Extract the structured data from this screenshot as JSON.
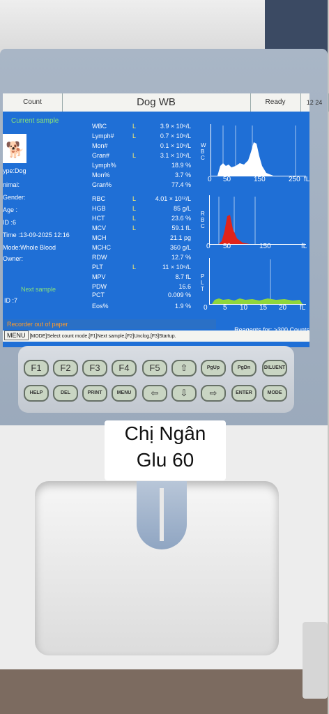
{
  "screen": {
    "mode": "Count",
    "title": "Dog  WB",
    "status": "Ready",
    "time": "12 24",
    "current_sample_label": "Current sample",
    "patient": {
      "type": "ype:Dog",
      "animal": "nimal:",
      "gender": "Gender:",
      "age": "Age  :",
      "id": "ID     :6",
      "time": "Time :13-09-2025 12:16",
      "mode": "Mode:Whole Blood",
      "owner": " Owner:"
    },
    "next_sample_label": "Next sample",
    "next_id": "ID    :7",
    "params": [
      {
        "name": "WBC",
        "flag": "L",
        "value": "3.9 × 10⁹/L"
      },
      {
        "name": "Lymph#",
        "flag": "L",
        "value": "0.7 × 10⁹/L"
      },
      {
        "name": "Mon#",
        "flag": "",
        "value": "0.1 × 10⁹/L"
      },
      {
        "name": "Gran#",
        "flag": "L",
        "value": "3.1 × 10⁹/L"
      },
      {
        "name": "Lymph%",
        "flag": "",
        "value": "18.9 %"
      },
      {
        "name": "Mon%",
        "flag": "",
        "value": "3.7 %"
      },
      {
        "name": "Gran%",
        "flag": "",
        "value": "77.4 %"
      },
      {
        "name": "RBC",
        "flag": "L",
        "value": "4.01 × 10¹²/L"
      },
      {
        "name": "HGB",
        "flag": "L",
        "value": "85 g/L"
      },
      {
        "name": "HCT",
        "flag": "L",
        "value": "23.6 %"
      },
      {
        "name": "MCV",
        "flag": "L",
        "value": "59.1 fL"
      },
      {
        "name": "MCH",
        "flag": "",
        "value": "21.1 pg"
      },
      {
        "name": "MCHC",
        "flag": "",
        "value": "360 g/L"
      },
      {
        "name": "RDW",
        "flag": "",
        "value": "12.7 %"
      },
      {
        "name": "PLT",
        "flag": "L",
        "value": "11 × 10⁹/L"
      },
      {
        "name": "MPV",
        "flag": "",
        "value": "8.7 fL"
      },
      {
        "name": "PDW",
        "flag": "",
        "value": "16.6"
      },
      {
        "name": "PCT",
        "flag": "",
        "value": "0.009 %"
      },
      {
        "name": "Eos%",
        "flag": "",
        "value": "1.9 %"
      }
    ],
    "hist_wbc": {
      "label": "W\nB\nC",
      "ticks": [
        "0",
        "50",
        "150",
        "250",
        "fL"
      ]
    },
    "hist_rbc": {
      "label": "R\nB\nC",
      "ticks": [
        "0",
        "50",
        "150",
        "fL"
      ]
    },
    "hist_plt": {
      "label": "P\nL\nT",
      "ticks": [
        "0",
        "5",
        "10",
        "15",
        "20",
        "fL"
      ]
    },
    "recorder_msg": "Recorder out of paper",
    "reagents": "Reagents for: >300 Counts",
    "menu_label": "MENU",
    "help_text": "[MODE]Select count mode,[F1]Next sample,[F2]Unclog,[F3]Startup."
  },
  "keys_row1": [
    "F1",
    "F2",
    "F3",
    "F4",
    "F5",
    "⇧",
    "PgUp",
    "PgDn",
    "DILUENT"
  ],
  "keys_row2": [
    "HELP",
    "DEL",
    "PRINT",
    "MENU",
    "⇦",
    "⇩",
    "⇨",
    "ENTER",
    "MODE"
  ],
  "sticker": {
    "line1": "Chị Ngân",
    "line2": "Glu 60"
  },
  "colors": {
    "screen_bg": "#1f6fd6",
    "rbc_curve": "#e0241b",
    "plt_curve": "#8fd63c",
    "wbc_curve": "#ffffff",
    "flag_text": "#ffef6a"
  }
}
